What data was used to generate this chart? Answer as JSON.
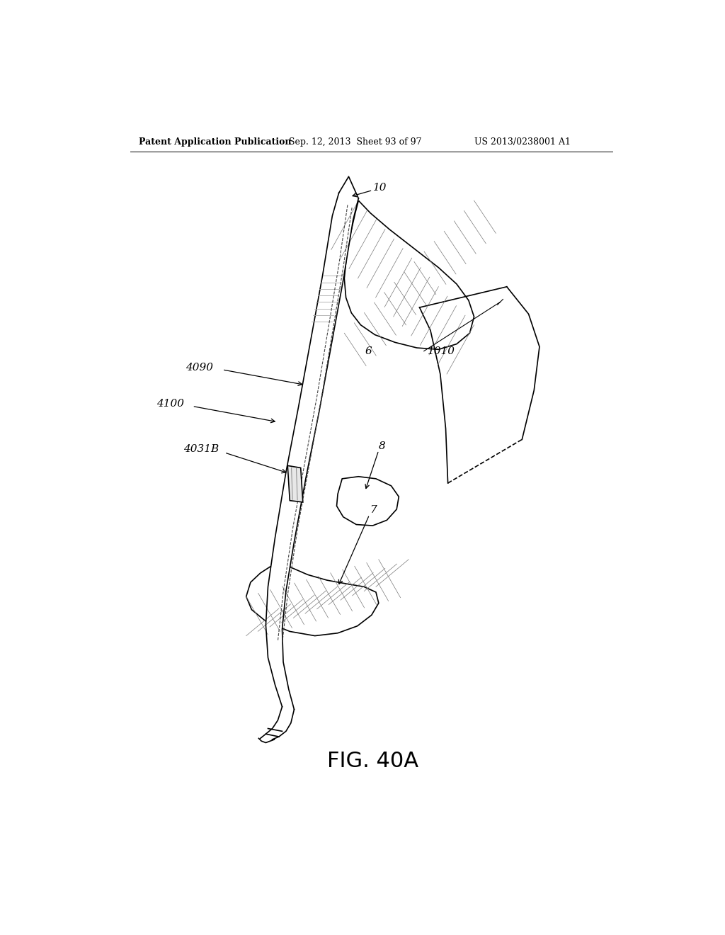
{
  "bg_color": "#ffffff",
  "header_left": "Patent Application Publication",
  "header_mid": "Sep. 12, 2013  Sheet 93 of 97",
  "header_right": "US 2013/0238001 A1",
  "figure_label": "FIG. 40A",
  "line_color": "#000000",
  "line_width": 1.2,
  "dashed_color": "#333333"
}
